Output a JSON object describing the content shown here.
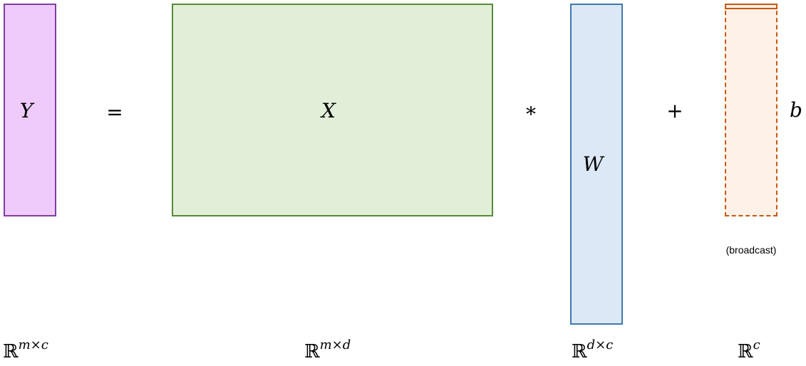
{
  "diagram": {
    "matrices": {
      "y": {
        "symbol": "Y",
        "fill": "#eecbfb",
        "stroke": "#7f3f9f"
      },
      "x": {
        "symbol": "X",
        "fill": "#e2efd8",
        "stroke": "#578a38"
      },
      "w": {
        "symbol": "W",
        "fill": "#dce8f5",
        "stroke": "#3f79ad"
      },
      "b": {
        "symbol": "b",
        "fill": "#fdf1e8",
        "stroke": "#c55a11",
        "note": "(broadcast)"
      }
    },
    "operators": {
      "equals": "=",
      "times": "*",
      "plus": "+"
    },
    "dimensions": {
      "y": {
        "base": "ℝ",
        "exp": "m×c"
      },
      "x": {
        "base": "ℝ",
        "exp": "m×d"
      },
      "w": {
        "base": "ℝ",
        "exp": "d×c"
      },
      "b": {
        "base": "ℝ",
        "exp": "c"
      }
    }
  }
}
